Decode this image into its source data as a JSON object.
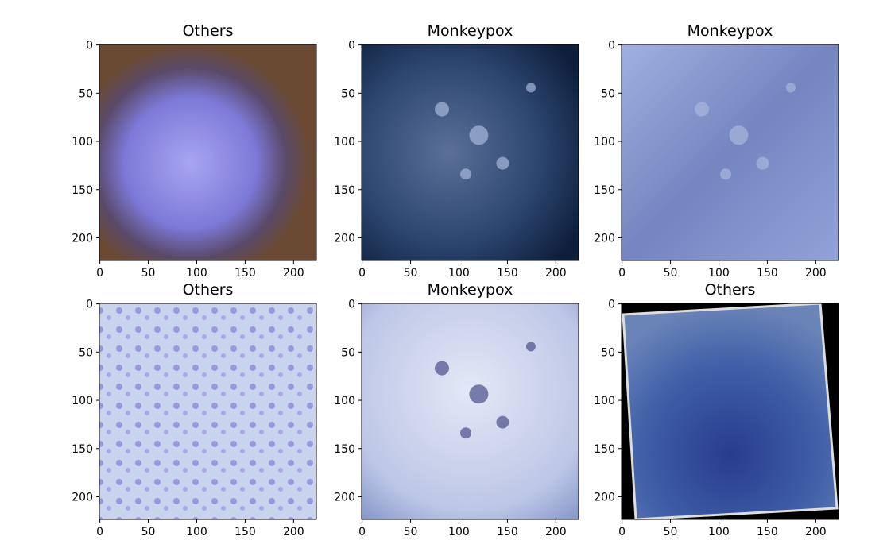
{
  "chart_data": [
    {
      "type": "image",
      "title": "Others",
      "xlim": [
        -0.5,
        223.5
      ],
      "ylim": [
        223.5,
        -0.5
      ],
      "xticks": [
        0,
        50,
        100,
        150,
        200
      ],
      "yticks": [
        0,
        50,
        100,
        150,
        200
      ]
    },
    {
      "type": "image",
      "title": "Monkeypox",
      "xlim": [
        -0.5,
        223.5
      ],
      "ylim": [
        223.5,
        -0.5
      ],
      "xticks": [
        0,
        50,
        100,
        150,
        200
      ],
      "yticks": [
        0,
        50,
        100,
        150,
        200
      ]
    },
    {
      "type": "image",
      "title": "Monkeypox",
      "xlim": [
        -0.5,
        223.5
      ],
      "ylim": [
        223.5,
        -0.5
      ],
      "xticks": [
        0,
        50,
        100,
        150,
        200
      ],
      "yticks": [
        0,
        50,
        100,
        150,
        200
      ]
    },
    {
      "type": "image",
      "title": "Others",
      "xlim": [
        -0.5,
        223.5
      ],
      "ylim": [
        223.5,
        -0.5
      ],
      "xticks": [
        0,
        50,
        100,
        150,
        200
      ],
      "yticks": [
        0,
        50,
        100,
        150,
        200
      ]
    },
    {
      "type": "image",
      "title": "Monkeypox",
      "xlim": [
        -0.5,
        223.5
      ],
      "ylim": [
        223.5,
        -0.5
      ],
      "xticks": [
        0,
        50,
        100,
        150,
        200
      ],
      "yticks": [
        0,
        50,
        100,
        150,
        200
      ]
    },
    {
      "type": "image",
      "title": "Others",
      "xlim": [
        -0.5,
        223.5
      ],
      "ylim": [
        223.5,
        -0.5
      ],
      "xticks": [
        0,
        50,
        100,
        150,
        200
      ],
      "yticks": [
        0,
        50,
        100,
        150,
        200
      ]
    }
  ]
}
